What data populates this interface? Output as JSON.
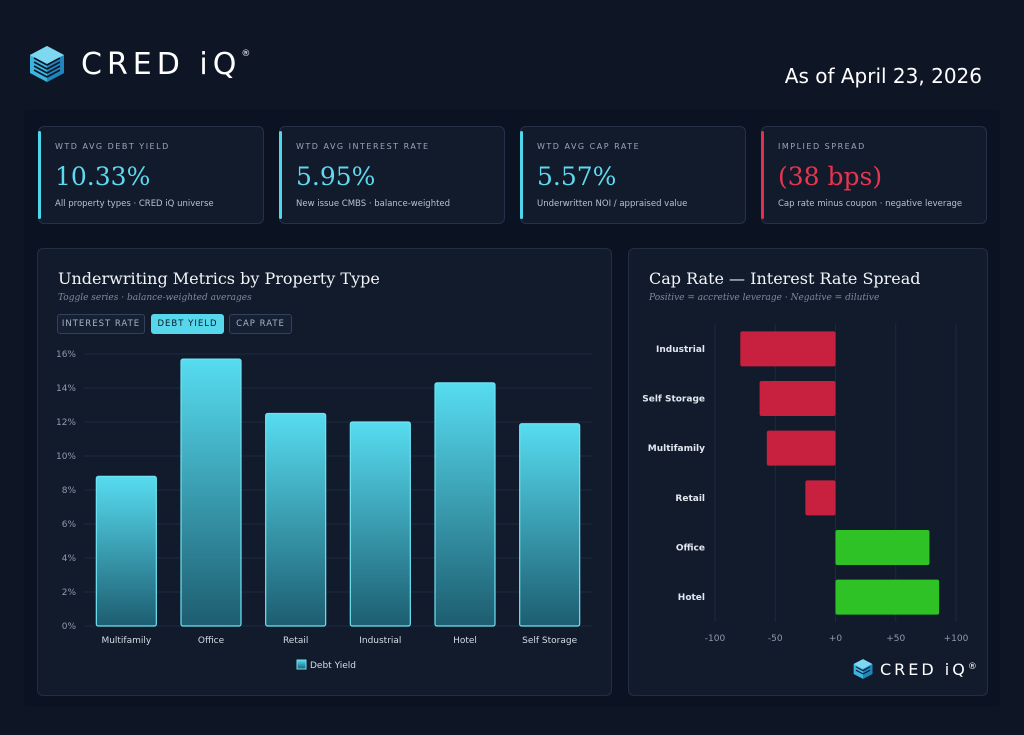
{
  "brand": {
    "name": "CRED iQ",
    "registered": "®"
  },
  "header": {
    "as_of": "As of April 23, 2026"
  },
  "kpis": [
    {
      "label": "WTD AVG DEBT YIELD",
      "value": "10.33%",
      "sub": "All property types · CRED iQ universe",
      "accent": "#4fd6ea"
    },
    {
      "label": "WTD AVG INTEREST RATE",
      "value": "5.95%",
      "sub": "New issue CMBS · balance-weighted",
      "accent": "#4fd6ea"
    },
    {
      "label": "WTD AVG CAP RATE",
      "value": "5.57%",
      "sub": "Underwritten NOI / appraised value",
      "accent": "#4fd6ea"
    },
    {
      "label": "IMPLIED SPREAD",
      "value": "(38 bps)",
      "sub": "Cap rate minus coupon · negative leverage",
      "accent": "#e0304e"
    }
  ],
  "left_card": {
    "title": "Underwriting Metrics by Property Type",
    "subtitle": "Toggle series · balance-weighted averages",
    "toggles": [
      {
        "label": "INTEREST RATE",
        "active": false
      },
      {
        "label": "DEBT YIELD",
        "active": true
      },
      {
        "label": "CAP RATE",
        "active": false
      }
    ]
  },
  "right_card": {
    "title": "Cap Rate — Interest Rate Spread",
    "subtitle": "Positive = accretive leverage · Negative = dilutive"
  },
  "chart_data": [
    {
      "type": "bar",
      "title": "Underwriting Metrics by Property Type",
      "categories": [
        "Multifamily",
        "Office",
        "Retail",
        "Industrial",
        "Hotel",
        "Self Storage"
      ],
      "series": [
        {
          "name": "Debt Yield",
          "values": [
            8.8,
            15.7,
            12.5,
            12.0,
            14.3,
            11.9
          ]
        }
      ],
      "ylim": [
        0,
        16
      ],
      "yticks": [
        0,
        2,
        4,
        6,
        8,
        10,
        12,
        14,
        16
      ],
      "ytick_suffix": "%",
      "legend": "bottom-center",
      "colors": {
        "bar_top": "#57dcf0",
        "bar_bottom": "#1d5d70",
        "bar_edge": "#6fe3f3"
      }
    },
    {
      "type": "bar",
      "orientation": "horizontal",
      "title": "Cap Rate — Interest Rate Spread",
      "categories": [
        "Industrial",
        "Self Storage",
        "Multifamily",
        "Retail",
        "Office",
        "Hotel"
      ],
      "values": [
        -79,
        -63,
        -57,
        -25,
        78,
        86
      ],
      "xlim": [
        -100,
        100
      ],
      "xticks": [
        -100,
        -50,
        0,
        50,
        100
      ],
      "xtick_labels": [
        "-100",
        "-50",
        "+0",
        "+50",
        "+100"
      ],
      "colors": {
        "positive": "#2ec226",
        "negative": "#c8213f"
      }
    }
  ]
}
